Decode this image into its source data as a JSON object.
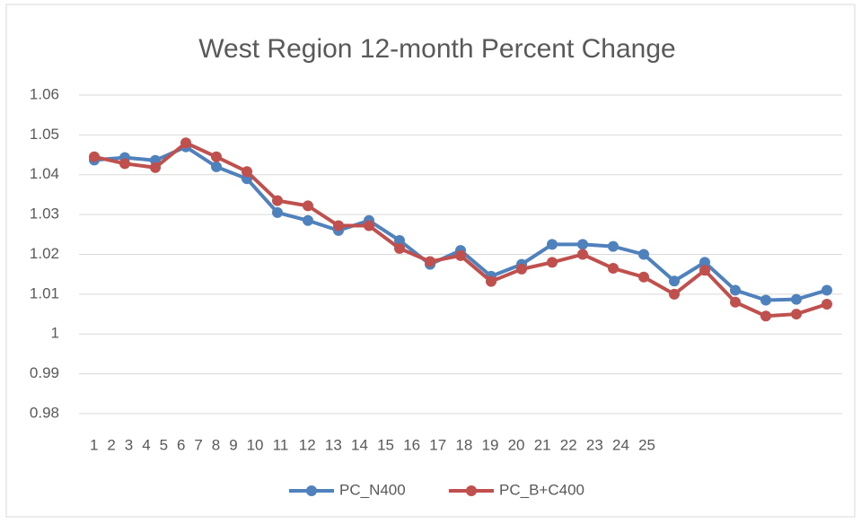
{
  "chart_data": {
    "type": "line",
    "title": "West Region 12-month Percent Change",
    "categories": [
      "1",
      "2",
      "3",
      "4",
      "5",
      "6",
      "7",
      "8",
      "9",
      "10",
      "11",
      "12",
      "13",
      "14",
      "15",
      "16",
      "17",
      "18",
      "19",
      "20",
      "21",
      "22",
      "23",
      "24",
      "25"
    ],
    "series": [
      {
        "name": "PC_N400",
        "color": "#4f81bd",
        "values": [
          1.0437,
          1.0443,
          1.0436,
          1.047,
          1.042,
          1.039,
          1.0305,
          1.0285,
          1.026,
          1.0285,
          1.0235,
          1.0175,
          1.021,
          1.0145,
          1.0175,
          1.0225,
          1.0225,
          1.022,
          1.02,
          1.0133,
          1.018,
          1.011,
          1.0085,
          1.0087,
          1.011
        ]
      },
      {
        "name": "PC_B+C400",
        "color": "#c0504d",
        "values": [
          1.0445,
          1.0428,
          1.0418,
          1.048,
          1.0445,
          1.0408,
          1.0335,
          1.0322,
          1.0272,
          1.0272,
          1.0215,
          1.0182,
          1.0197,
          1.0132,
          1.0163,
          1.018,
          1.02,
          1.0165,
          1.0143,
          1.01,
          1.016,
          1.008,
          1.0045,
          1.005,
          1.0075
        ]
      }
    ],
    "ylim": [
      0.98,
      1.06
    ],
    "yticks": [
      0.98,
      0.99,
      1,
      1.01,
      1.02,
      1.03,
      1.04,
      1.05,
      1.06
    ],
    "grid": true,
    "legend": "bottom"
  }
}
